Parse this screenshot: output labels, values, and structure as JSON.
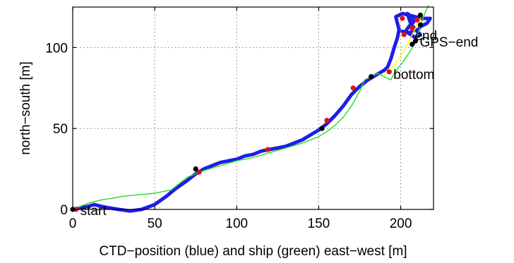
{
  "chart_data": {
    "type": "line",
    "title": "",
    "xlabel": "CTD−position (blue) and ship (green) east−west [m]",
    "ylabel": "north−south [m]",
    "xlim": [
      0,
      220
    ],
    "ylim": [
      0,
      125
    ],
    "xticks": [
      0,
      50,
      100,
      150,
      200
    ],
    "yticks": [
      0,
      50,
      100
    ],
    "grid": true,
    "series": [
      {
        "color": "#1e1ee6",
        "points": [
          [
            0,
            0
          ],
          [
            5,
            1
          ],
          [
            10,
            2
          ],
          [
            13,
            3
          ],
          [
            17,
            2
          ],
          [
            22,
            1
          ],
          [
            28,
            0
          ],
          [
            35,
            -1
          ],
          [
            42,
            0
          ],
          [
            50,
            3
          ],
          [
            57,
            8
          ],
          [
            63,
            13
          ],
          [
            70,
            18
          ],
          [
            75,
            22
          ],
          [
            80,
            25
          ],
          [
            85,
            27
          ],
          [
            90,
            29
          ],
          [
            95,
            30
          ],
          [
            100,
            31
          ],
          [
            105,
            33
          ],
          [
            110,
            34
          ],
          [
            115,
            36
          ],
          [
            120,
            37
          ],
          [
            125,
            38
          ],
          [
            130,
            39
          ],
          [
            135,
            41
          ],
          [
            140,
            43
          ],
          [
            145,
            46
          ],
          [
            150,
            49
          ],
          [
            155,
            53
          ],
          [
            160,
            58
          ],
          [
            165,
            64
          ],
          [
            170,
            71
          ],
          [
            175,
            76
          ],
          [
            180,
            80
          ],
          [
            185,
            83
          ],
          [
            190,
            86
          ],
          [
            192,
            88
          ],
          [
            194,
            93
          ],
          [
            196,
            100
          ],
          [
            198,
            106
          ],
          [
            199,
            111
          ],
          [
            198,
            115
          ],
          [
            197,
            119
          ],
          [
            201,
            121
          ],
          [
            205,
            120
          ],
          [
            209,
            119
          ],
          [
            213,
            118
          ],
          [
            218,
            118
          ],
          [
            216,
            115
          ],
          [
            212,
            113
          ],
          [
            210,
            110
          ],
          [
            212,
            108
          ],
          [
            209,
            106
          ],
          [
            206,
            108
          ],
          [
            203,
            110
          ],
          [
            205,
            113
          ],
          [
            208,
            116
          ],
          [
            207,
            119
          ],
          [
            204,
            121
          ],
          [
            206,
            115
          ],
          [
            209,
            111
          ],
          [
            205,
            109
          ],
          [
            201,
            110
          ]
        ]
      },
      {
        "color": "#22dd22",
        "points": [
          [
            0,
            0
          ],
          [
            5,
            2
          ],
          [
            10,
            4
          ],
          [
            18,
            6
          ],
          [
            25,
            7
          ],
          [
            30,
            8
          ],
          [
            40,
            9
          ],
          [
            50,
            10
          ],
          [
            60,
            12
          ],
          [
            65,
            16
          ],
          [
            70,
            20
          ],
          [
            75,
            22
          ],
          [
            80,
            24
          ],
          [
            90,
            27
          ],
          [
            100,
            30
          ],
          [
            110,
            32
          ],
          [
            120,
            35
          ],
          [
            130,
            38
          ],
          [
            140,
            41
          ],
          [
            150,
            45
          ],
          [
            155,
            48
          ],
          [
            160,
            52
          ],
          [
            165,
            57
          ],
          [
            170,
            64
          ],
          [
            175,
            73
          ],
          [
            178,
            80
          ],
          [
            182,
            82
          ],
          [
            186,
            84
          ],
          [
            190,
            82
          ],
          [
            194,
            80
          ],
          [
            196,
            84
          ],
          [
            199,
            88
          ],
          [
            202,
            92
          ],
          [
            206,
            98
          ],
          [
            209,
            104
          ],
          [
            211,
            110
          ],
          [
            213,
            116
          ],
          [
            215,
            122
          ],
          [
            217,
            126
          ]
        ]
      },
      {
        "color": "#ffff00",
        "points": [
          [
            190,
            84
          ],
          [
            196,
            89
          ],
          [
            200,
            95
          ],
          [
            204,
            102
          ],
          [
            207,
            108
          ],
          [
            210,
            114
          ],
          [
            213,
            120
          ]
        ]
      }
    ],
    "markers": [
      {
        "color": "#dd1111",
        "points": [
          [
            2,
            0
          ],
          [
            77,
            23
          ],
          [
            119,
            37
          ],
          [
            155,
            55
          ],
          [
            171,
            75
          ],
          [
            193,
            85
          ],
          [
            202,
            108
          ],
          [
            201,
            118
          ],
          [
            207,
            112
          ],
          [
            210,
            117
          ]
        ]
      },
      {
        "color": "#000000",
        "points": [
          [
            0,
            0
          ],
          [
            75,
            25
          ],
          [
            152,
            50
          ],
          [
            182,
            82
          ],
          [
            207,
            102
          ],
          [
            209,
            104
          ],
          [
            212,
            114
          ],
          [
            212,
            120
          ]
        ]
      }
    ],
    "annotations": [
      {
        "text": "start",
        "x": 2,
        "y": 0
      },
      {
        "text": "bottom",
        "x": 193,
        "y": 84
      },
      {
        "text": "end",
        "x": 206,
        "y": 108
      },
      {
        "text": "GPS−end",
        "x": 209,
        "y": 104
      }
    ]
  }
}
